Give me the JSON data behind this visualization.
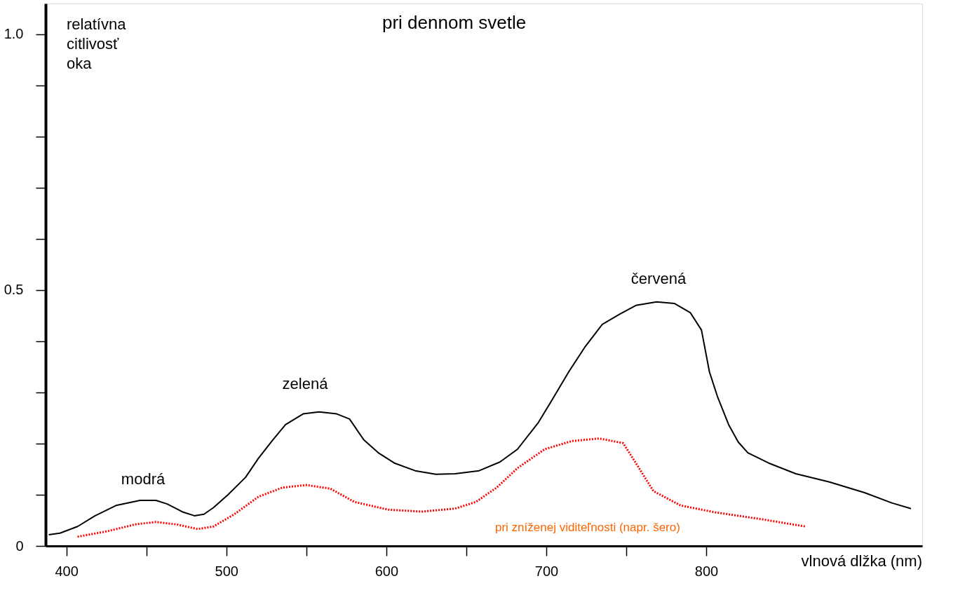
{
  "chart_data": {
    "type": "line",
    "xlabel": "vlnová dlžka (nm)",
    "ylabel": "relatívna citlivosť oka",
    "xlim": [
      387,
      935
    ],
    "ylim": [
      0,
      1.06
    ],
    "xticks": [
      400,
      {
        "value": 450,
        "label": null
      },
      500,
      {
        "value": 550,
        "label": null
      },
      600,
      {
        "value": 650,
        "label": null
      },
      700,
      {
        "value": 750,
        "label": null
      },
      800
    ],
    "yticks": [
      0,
      {
        "value": 0.1,
        "label": null
      },
      {
        "value": 0.2,
        "label": null
      },
      {
        "value": 0.3,
        "label": null
      },
      {
        "value": 0.4,
        "label": null
      },
      0.5,
      {
        "value": 0.6,
        "label": null
      },
      {
        "value": 0.7,
        "label": null
      },
      {
        "value": 0.8,
        "label": null
      },
      {
        "value": 0.9,
        "label": null
      },
      {
        "value": 1,
        "label": "1.0"
      }
    ],
    "grid": false,
    "marker": "none",
    "series": [
      {
        "name": "pri dennom svetle",
        "color": "#000000",
        "line_style": "solid",
        "x": [
          389,
          396,
          407,
          418,
          431,
          446,
          456,
          463,
          473,
          480,
          486,
          492,
          501,
          512,
          520,
          529,
          537,
          548,
          558,
          569,
          577,
          586,
          595,
          605,
          618,
          631,
          643,
          658,
          671,
          682,
          695,
          703,
          714,
          724,
          735,
          746,
          756,
          769,
          780,
          790,
          797,
          802,
          807,
          814,
          820,
          826,
          839,
          856,
          877,
          899,
          916,
          928
        ],
        "values": [
          0.022,
          0.025,
          0.038,
          0.059,
          0.079,
          0.089,
          0.089,
          0.082,
          0.066,
          0.059,
          0.062,
          0.075,
          0.1,
          0.134,
          0.171,
          0.207,
          0.237,
          0.258,
          0.262,
          0.258,
          0.248,
          0.207,
          0.182,
          0.162,
          0.147,
          0.14,
          0.141,
          0.147,
          0.164,
          0.189,
          0.241,
          0.282,
          0.34,
          0.388,
          0.433,
          0.453,
          0.47,
          0.477,
          0.474,
          0.456,
          0.422,
          0.34,
          0.292,
          0.237,
          0.203,
          0.182,
          0.162,
          0.141,
          0.125,
          0.104,
          0.084,
          0.073
        ]
      },
      {
        "name": "pri zníženej viditeľnosti (napr. šero)",
        "color": "#ff0000",
        "line_style": "dotted",
        "x": [
          407,
          426,
          443,
          456,
          469,
          482,
          492,
          505,
          520,
          535,
          550,
          565,
          580,
          601,
          622,
          643,
          656,
          669,
          682,
          699,
          716,
          733,
          748,
          756,
          767,
          784,
          805,
          835,
          862
        ],
        "values": [
          0.018,
          0.029,
          0.042,
          0.047,
          0.042,
          0.033,
          0.038,
          0.062,
          0.096,
          0.114,
          0.119,
          0.112,
          0.086,
          0.071,
          0.067,
          0.073,
          0.086,
          0.114,
          0.152,
          0.189,
          0.205,
          0.21,
          0.201,
          0.162,
          0.107,
          0.079,
          0.066,
          0.052,
          0.038
        ]
      }
    ],
    "annotations": [
      "modrá",
      "zelená",
      "červená"
    ]
  }
}
